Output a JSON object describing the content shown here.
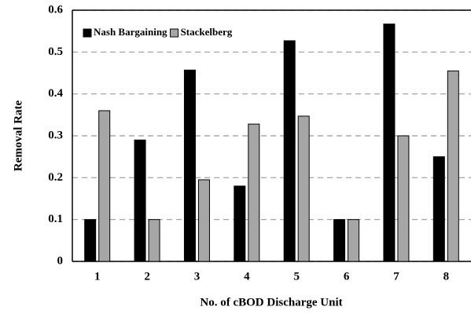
{
  "chart_data": {
    "type": "bar",
    "categories": [
      "1",
      "2",
      "3",
      "4",
      "5",
      "6",
      "7",
      "8"
    ],
    "series": [
      {
        "name": "Nash Bargaining",
        "color": "#000000",
        "values": [
          0.1,
          0.29,
          0.457,
          0.18,
          0.527,
          0.1,
          0.567,
          0.25
        ]
      },
      {
        "name": "Stackelberg",
        "color": "#a6a6a6",
        "values": [
          0.36,
          0.1,
          0.195,
          0.328,
          0.347,
          0.1,
          0.3,
          0.455
        ]
      }
    ],
    "xlabel": "No. of cBOD Discharge Unit",
    "ylabel": "Removal Rate",
    "ylim": [
      0,
      0.6
    ],
    "yticks": [
      0,
      0.1,
      0.2,
      0.3,
      0.4,
      0.5,
      0.6
    ],
    "grid": true,
    "legend": "top-left"
  }
}
